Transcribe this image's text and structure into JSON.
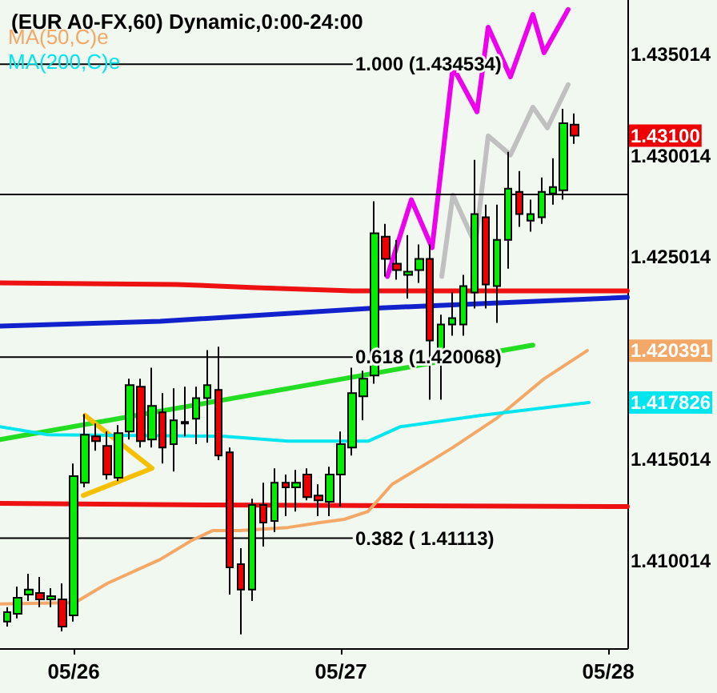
{
  "chart_data": {
    "type": "candlestick",
    "title": "(EUR A0-FX,60) Dynamic,0:00-24:00",
    "legend": "top left",
    "grid": false,
    "xlim": [
      "--05-25T17:23",
      "--05-28T01:43"
    ],
    "xticks": [
      {
        "value": "--05-26T00:00",
        "label": "05/26"
      },
      {
        "value": "--05-27T00:00",
        "label": "05/27"
      },
      {
        "value": "--05-28T00:00",
        "label": "05/28"
      }
    ],
    "ylim": [
      1.4057,
      1.4377
    ],
    "yticks": [
      1.435014,
      1.430014,
      1.425014,
      1.415014,
      1.410014
    ],
    "ref_lines": [
      {
        "axis": "y",
        "value": 1.42815,
        "color": "#000000"
      }
    ],
    "series": [
      {
        "type": "line",
        "color": "#ee1111",
        "x": [
          "--05-25T17:23",
          "--05-26T09:12",
          "--05-26T16:23",
          "--05-27T01:00",
          "--05-28T01:43"
        ],
        "values": [
          1.42373,
          1.42366,
          1.4235,
          1.42334,
          1.42334
        ]
      },
      {
        "type": "line",
        "color": "#1122cc",
        "x": [
          "--05-25T17:23",
          "--05-26T07:46",
          "--05-27T02:26",
          "--05-27T12:29",
          "--05-28T01:43"
        ],
        "values": [
          1.4216,
          1.42184,
          1.42247,
          1.42271,
          1.42302
        ]
      },
      {
        "type": "line",
        "color": "#ee1111",
        "x": [
          "--05-25T17:23",
          "--05-26T12:47",
          "--05-28T01:43"
        ],
        "values": [
          1.41285,
          1.41277,
          1.41269
        ]
      },
      {
        "type": "line",
        "color": "#22dd22",
        "x": [
          "--05-25T17:23",
          "--05-27T17:14"
        ],
        "values": [
          1.416,
          1.42066
        ]
      },
      {
        "type": "line",
        "color": "#f4c000",
        "x": [
          "--05-26T01:01",
          "--05-26T07:02",
          "--05-26T00:52"
        ],
        "values": [
          1.41719,
          1.41458,
          1.41324
        ]
      },
      {
        "type": "line",
        "color": "#000000",
        "x": [
          "--05-25T17:23",
          "--05-27T01:00"
        ],
        "values": [
          1.434534,
          1.434534
        ]
      },
      {
        "type": "line",
        "color": "#000000",
        "x": [
          "--05-25T17:23",
          "--05-27T01:00"
        ],
        "values": [
          1.420068,
          1.420068
        ]
      },
      {
        "type": "line",
        "color": "#000000",
        "x": [
          "--05-25T17:23",
          "--05-27T01:00"
        ],
        "values": [
          1.41113,
          1.41113
        ]
      },
      {
        "type": "line",
        "name": "MA(50,C)e",
        "color": "#f4a868",
        "x": [
          "--05-25T17:23",
          "--05-26T00:08",
          "--05-26T03:01",
          "--05-26T07:46",
          "--05-26T10:38",
          "--05-26T12:30",
          "--05-26T14:56",
          "--05-26T19:15",
          "--05-26T22:08",
          "--05-27T00:17",
          "--05-27T02:26",
          "--05-27T04:35",
          "--05-27T08:11",
          "--05-27T10:03",
          "--05-27T13:56",
          "--05-27T18:14",
          "--05-27T22:07"
        ],
        "values": [
          1.40788,
          1.40795,
          1.4089,
          1.41008,
          1.41103,
          1.41151,
          1.41151,
          1.41166,
          1.4119,
          1.41206,
          1.41245,
          1.41379,
          1.41498,
          1.41561,
          1.41703,
          1.419,
          1.42039
        ]
      },
      {
        "type": "line",
        "name": "MA(200,C)e",
        "color": "#00e5ee",
        "x": [
          "--05-25T17:23",
          "--05-25T21:42",
          "--05-26T13:31",
          "--05-26T19:15",
          "--05-27T02:26",
          "--05-27T05:19",
          "--05-27T12:29",
          "--05-27T22:16"
        ],
        "values": [
          1.41663,
          1.41624,
          1.41616,
          1.41592,
          1.41592,
          1.41663,
          1.41719,
          1.41783
        ]
      },
      {
        "type": "line",
        "color": "#c0c0c0",
        "x": [
          "--05-27T09:03",
          "--05-27T10:03",
          "--05-27T12:04",
          "--05-27T13:13",
          "--05-27T15:13",
          "--05-27T17:14",
          "--05-27T18:32",
          "--05-27T20:24"
        ],
        "values": [
          1.42405,
          1.42807,
          1.42563,
          1.43099,
          1.43005,
          1.43241,
          1.43139,
          1.43352
        ]
      },
      {
        "type": "line",
        "color": "#ee00ee",
        "x": [
          "--05-27T04:10",
          "--05-27T06:19",
          "--05-27T08:11",
          "--05-27T10:03",
          "--05-27T12:13",
          "--05-27T13:13",
          "--05-27T15:13",
          "--05-27T17:14",
          "--05-27T18:14",
          "--05-27T20:24"
        ],
        "values": [
          1.42405,
          1.42784,
          1.42547,
          1.43439,
          1.43218,
          1.43636,
          1.43391,
          1.43699,
          1.4351,
          1.43723
        ]
      },
      {
        "type": "candlestick",
        "x": [
          "--05-25T18:00",
          "--05-25T19:00",
          "--05-25T20:00",
          "--05-25T21:00",
          "--05-25T22:00",
          "--05-25T23:00",
          "--05-26T00:00",
          "--05-26T01:00",
          "--05-26T02:00",
          "--05-26T03:00",
          "--05-26T04:00",
          "--05-26T05:00",
          "--05-26T06:00",
          "--05-26T07:00",
          "--05-26T08:00",
          "--05-26T09:00",
          "--05-26T10:00",
          "--05-26T11:00",
          "--05-26T12:00",
          "--05-26T13:00",
          "--05-26T14:00",
          "--05-26T15:00",
          "--05-26T16:00",
          "--05-26T17:00",
          "--05-26T18:00",
          "--05-26T19:00",
          "--05-26T20:00",
          "--05-26T21:00",
          "--05-26T22:00",
          "--05-26T23:00",
          "--05-27T00:00",
          "--05-27T01:00",
          "--05-27T02:00",
          "--05-27T03:00",
          "--05-27T04:00",
          "--05-27T05:00",
          "--05-27T06:00",
          "--05-27T07:00",
          "--05-27T08:00",
          "--05-27T09:00",
          "--05-27T10:00",
          "--05-27T11:00",
          "--05-27T12:00",
          "--05-27T13:00",
          "--05-27T14:00",
          "--05-27T15:00",
          "--05-27T16:00",
          "--05-27T17:00",
          "--05-27T18:00",
          "--05-27T19:00",
          "--05-27T20:00",
          "--05-27T21:00"
        ],
        "ohlc": [
          [
            1.40701,
            1.40772,
            1.40677,
            1.40748
          ],
          [
            1.4074,
            1.40874,
            1.40717,
            1.40819
          ],
          [
            1.40835,
            1.40937,
            1.40803,
            1.40859
          ],
          [
            1.40843,
            1.40922,
            1.40772,
            1.40811
          ],
          [
            1.40811,
            1.40866,
            1.40772,
            1.40827
          ],
          [
            1.40811,
            1.4089,
            1.40653,
            1.40677
          ],
          [
            1.40732,
            1.41482,
            1.40701,
            1.41419
          ],
          [
            1.41387,
            1.41726,
            1.41364,
            1.41624
          ],
          [
            1.41616,
            1.41679,
            1.41545,
            1.41592
          ],
          [
            1.41569,
            1.4164,
            1.41403,
            1.41427
          ],
          [
            1.41411,
            1.41671,
            1.41395,
            1.41632
          ],
          [
            1.4164,
            1.419,
            1.416,
            1.41869
          ],
          [
            1.41861,
            1.419,
            1.41561,
            1.41592
          ],
          [
            1.416,
            1.41955,
            1.41561,
            1.41766
          ],
          [
            1.41734,
            1.41829,
            1.41482,
            1.41561
          ],
          [
            1.41577,
            1.41853,
            1.41442,
            1.41695
          ],
          [
            1.41687,
            1.41861,
            1.41616,
            1.41679
          ],
          [
            1.41703,
            1.41861,
            1.41577,
            1.41805
          ],
          [
            1.41805,
            1.42042,
            1.41584,
            1.41869
          ],
          [
            1.41845,
            1.42058,
            1.41498,
            1.41521
          ],
          [
            1.41537,
            1.41561,
            1.40835,
            1.40969
          ],
          [
            1.40985,
            1.41064,
            1.40638,
            1.40859
          ],
          [
            1.40859,
            1.41308,
            1.40803,
            1.41277
          ],
          [
            1.41277,
            1.41387,
            1.41072,
            1.4119
          ],
          [
            1.41198,
            1.41458,
            1.41143,
            1.41387
          ],
          [
            1.41387,
            1.41427,
            1.41222,
            1.41364
          ],
          [
            1.41364,
            1.4145,
            1.41245,
            1.41387
          ],
          [
            1.41427,
            1.41458,
            1.413,
            1.41316
          ],
          [
            1.41324,
            1.41379,
            1.41222,
            1.413
          ],
          [
            1.41293,
            1.41466,
            1.41222,
            1.41427
          ],
          [
            1.41427,
            1.4164,
            1.41269,
            1.41577
          ],
          [
            1.41561,
            1.41955,
            1.41521,
            1.41829
          ],
          [
            1.41813,
            1.4194,
            1.41695,
            1.419
          ],
          [
            1.41916,
            1.42776,
            1.41876,
            1.42618
          ],
          [
            1.42602,
            1.42665,
            1.42405,
            1.42492
          ],
          [
            1.42468,
            1.42586,
            1.42389,
            1.42437
          ],
          [
            1.42413,
            1.4261,
            1.42295,
            1.42429
          ],
          [
            1.42437,
            1.42563,
            1.42373,
            1.42492
          ],
          [
            1.42492,
            1.42563,
            1.41797,
            1.42089
          ],
          [
            1.41995,
            1.42216,
            1.41797,
            1.42168
          ],
          [
            1.42168,
            1.42326,
            1.42113,
            1.422
          ],
          [
            1.42168,
            1.42413,
            1.42113,
            1.42358
          ],
          [
            1.42326,
            1.42981,
            1.42247,
            1.42713
          ],
          [
            1.42697,
            1.4276,
            1.42247,
            1.42366
          ],
          [
            1.42358,
            1.4276,
            1.42176,
            1.42586
          ],
          [
            1.42586,
            1.4302,
            1.42444,
            1.42839
          ],
          [
            1.42823,
            1.42926,
            1.4265,
            1.42713
          ],
          [
            1.42681,
            1.42784,
            1.42626,
            1.42713
          ],
          [
            1.42697,
            1.42894,
            1.42665,
            1.42823
          ],
          [
            1.42815,
            1.42989,
            1.4276,
            1.42847
          ],
          [
            1.42831,
            1.43233,
            1.42784,
            1.43162
          ],
          [
            1.43155,
            1.4321,
            1.4306,
            1.431
          ]
        ]
      }
    ],
    "annotations": [
      {
        "text": "1.000 (1.434534)",
        "x": "--05-27T01:00",
        "y": 1.434534
      },
      {
        "text": "0.618 (1.420068)",
        "x": "--05-27T01:00",
        "y": 1.420068
      },
      {
        "text": "0.382 ( 1.41113)",
        "x": "--05-27T01:00",
        "y": 1.41113
      },
      {
        "text": "1.43100",
        "x": "--05-27T21:00",
        "y": 1.431
      },
      {
        "text": "1.420391",
        "x": "--05-27T22:07",
        "y": 1.42039
      },
      {
        "text": "1.417826",
        "x": "--05-27T22:16",
        "y": 1.41783
      }
    ]
  }
}
